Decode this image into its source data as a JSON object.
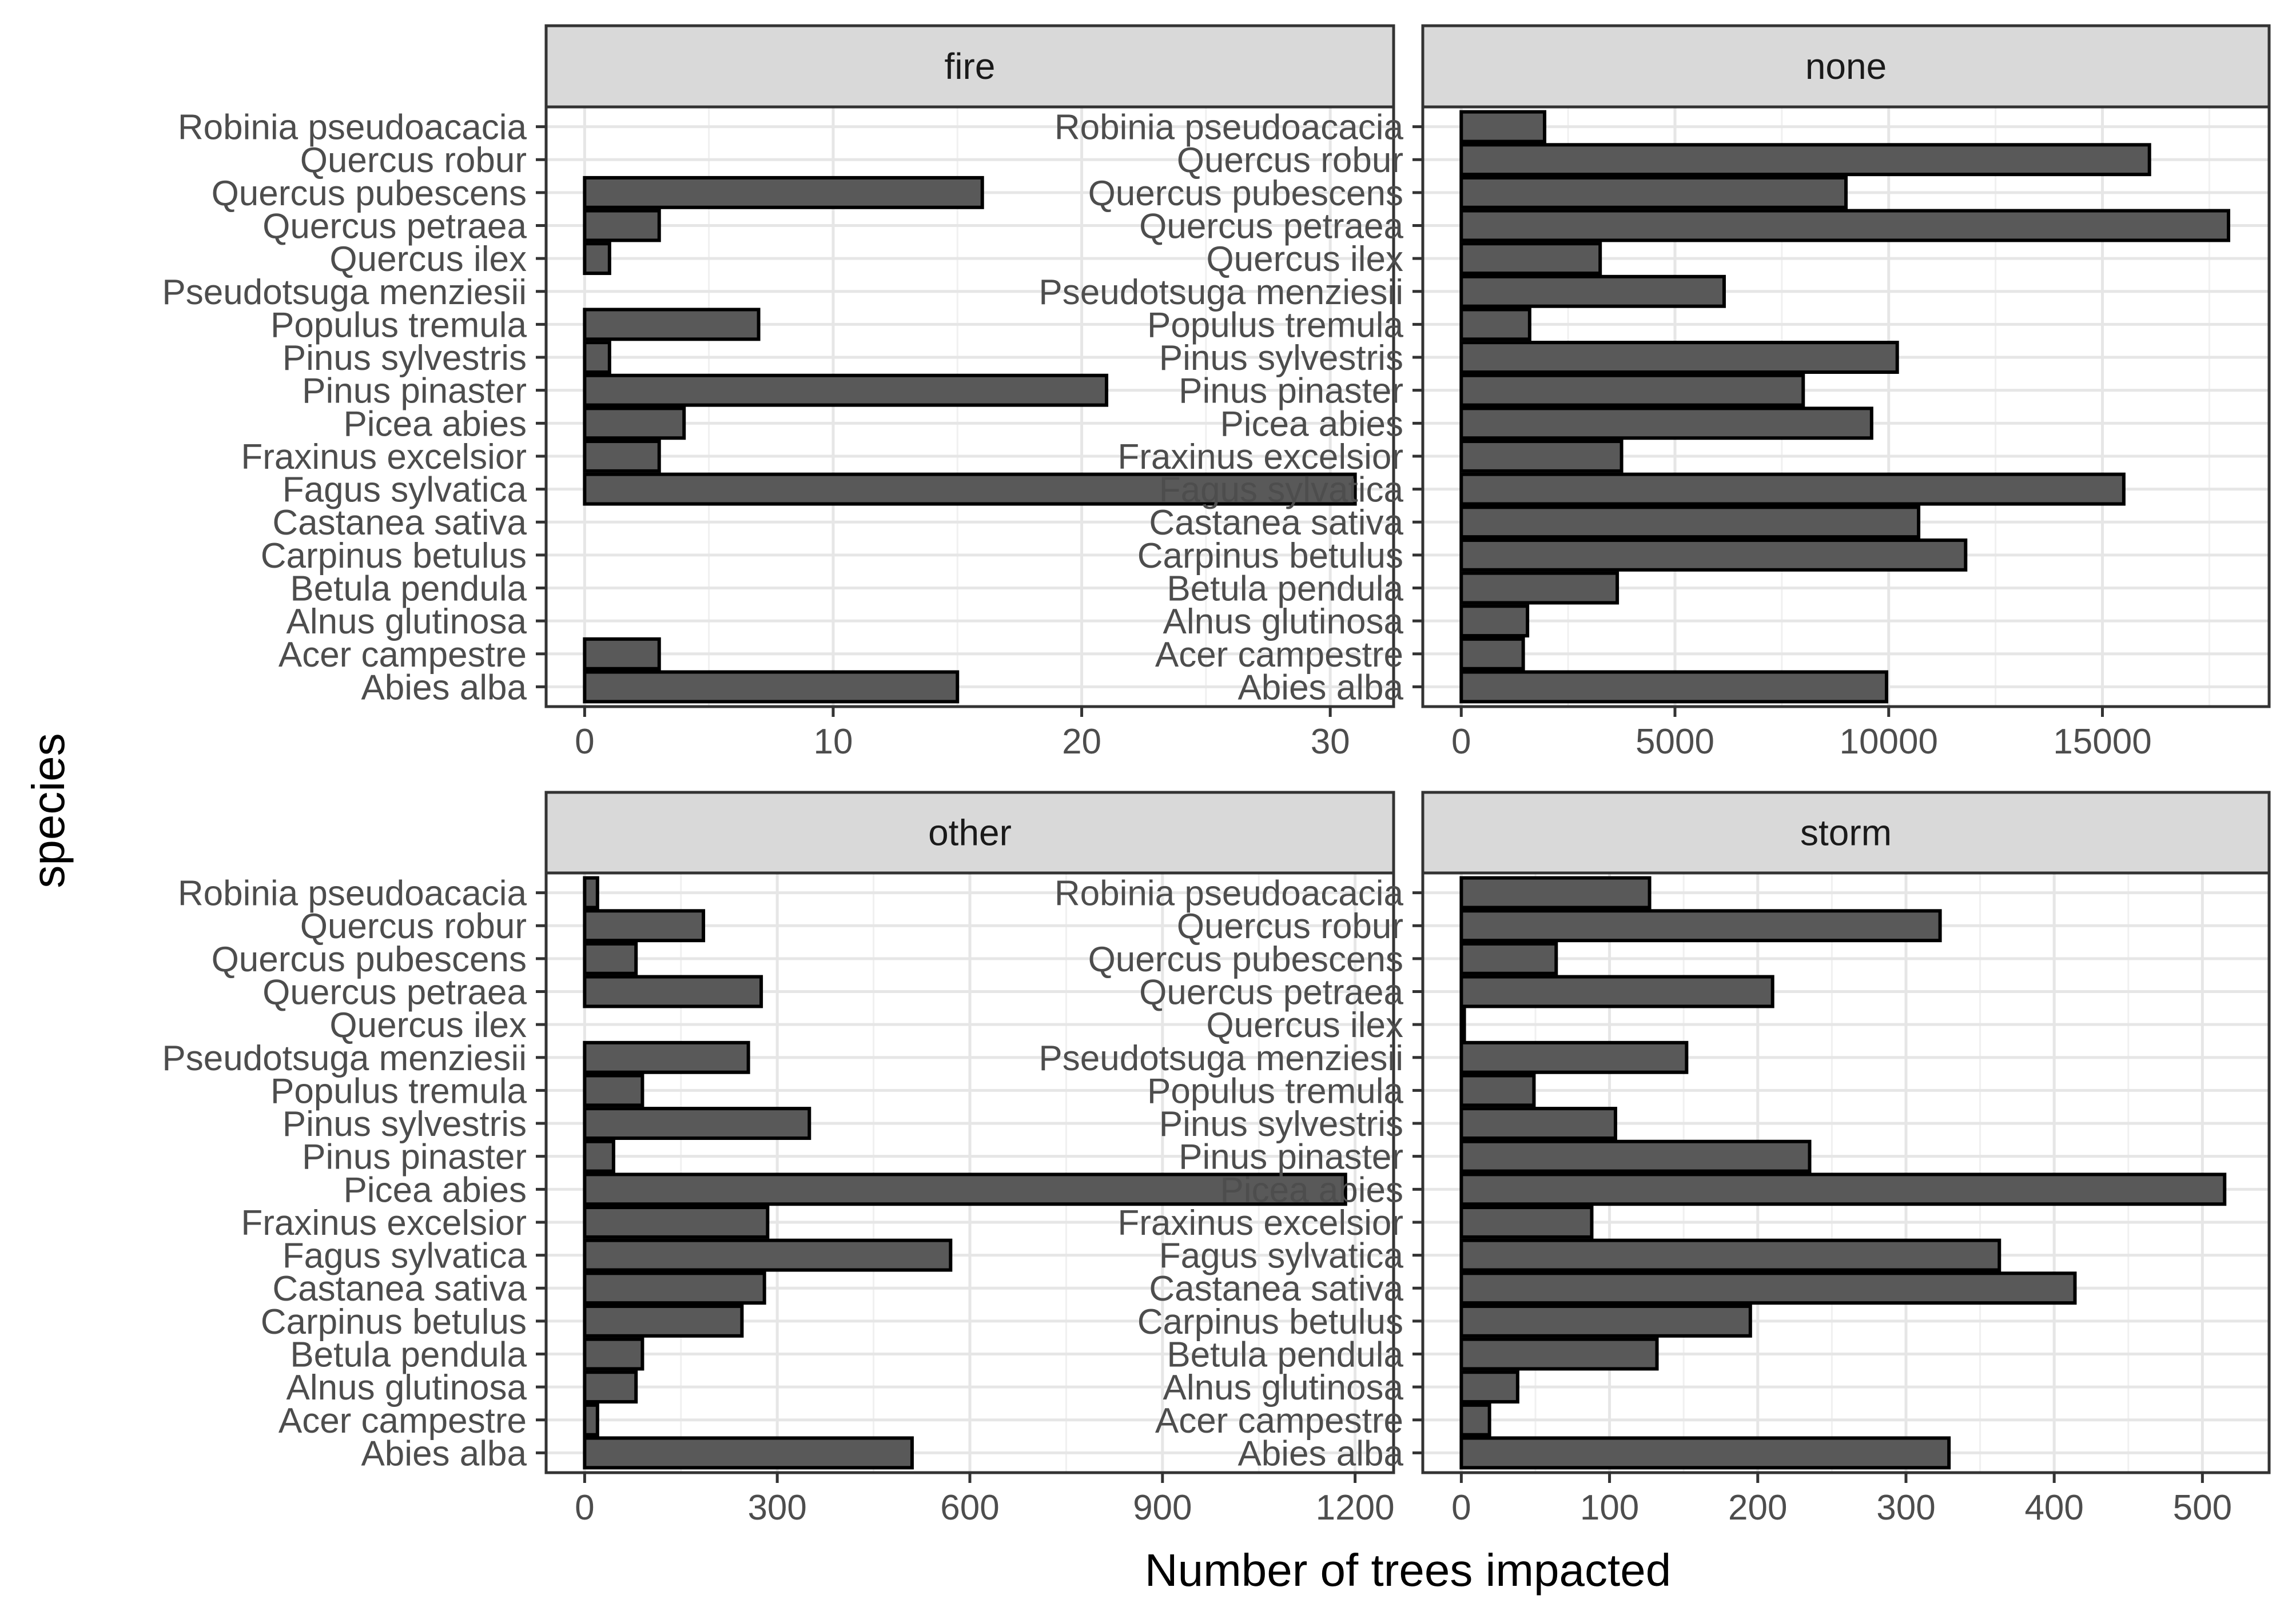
{
  "chart_data": {
    "type": "bar",
    "orientation": "horizontal",
    "xlabel": "Number of trees impacted",
    "ylabel": "species",
    "grid": true,
    "categories": [
      "Robinia pseudoacacia",
      "Quercus robur",
      "Quercus pubescens",
      "Quercus petraea",
      "Quercus ilex",
      "Pseudotsuga menziesii",
      "Populus tremula",
      "Pinus sylvestris",
      "Pinus pinaster",
      "Picea abies",
      "Fraxinus excelsior",
      "Fagus sylvatica",
      "Castanea sativa",
      "Carpinus betulus",
      "Betula pendula",
      "Alnus glutinosa",
      "Acer campestre",
      "Abies alba"
    ],
    "bar_color": "#595959",
    "panels": [
      {
        "name": "fire",
        "xlim": [
          -1.55,
          32.55
        ],
        "xticks": [
          0,
          10,
          20,
          30
        ],
        "values": [
          0,
          0,
          16,
          3,
          1,
          0,
          7,
          1,
          21,
          4,
          3,
          31,
          0,
          0,
          0,
          0,
          3,
          15
        ]
      },
      {
        "name": "none",
        "xlim": [
          -900,
          18900
        ],
        "xticks": [
          0,
          5000,
          10000,
          15000
        ],
        "xtick_labels": [
          "0",
          "5000",
          "10000",
          "15000"
        ],
        "values": [
          1950,
          16100,
          9000,
          17950,
          3250,
          6150,
          1600,
          10200,
          8000,
          9600,
          3750,
          15500,
          10700,
          11800,
          3650,
          1550,
          1450,
          9950
        ]
      },
      {
        "name": "other",
        "xlim": [
          -60,
          1260
        ],
        "xticks": [
          0,
          300,
          600,
          900,
          1200
        ],
        "values": [
          20,
          185,
          80,
          275,
          0,
          255,
          90,
          350,
          45,
          1185,
          285,
          570,
          280,
          245,
          90,
          80,
          20,
          510
        ]
      },
      {
        "name": "storm",
        "xlim": [
          -26,
          545
        ],
        "xticks": [
          0,
          100,
          200,
          300,
          400,
          500
        ],
        "values": [
          127,
          323,
          64,
          210,
          2,
          152,
          49,
          104,
          235,
          515,
          88,
          363,
          414,
          195,
          132,
          38,
          19,
          329
        ]
      }
    ]
  }
}
